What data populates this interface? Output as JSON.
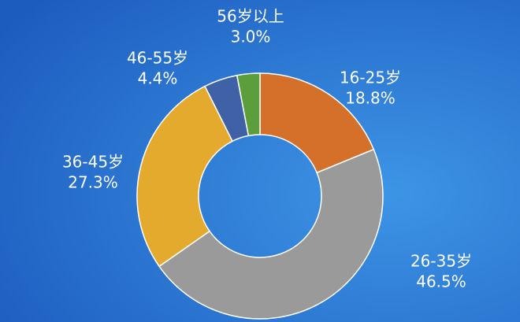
{
  "chart_data": {
    "type": "donut",
    "categories": [
      "16-25岁",
      "26-35岁",
      "36-45岁",
      "46-55岁",
      "56岁以上"
    ],
    "values": [
      18.8,
      46.5,
      27.3,
      4.4,
      3.0
    ],
    "value_labels": [
      "18.8%",
      "46.5%",
      "27.3%",
      "4.4%",
      "3.0%"
    ],
    "colors": [
      "#d4702a",
      "#9a9a9a",
      "#e4aa2e",
      "#3f62a6",
      "#5d9e3c"
    ]
  }
}
